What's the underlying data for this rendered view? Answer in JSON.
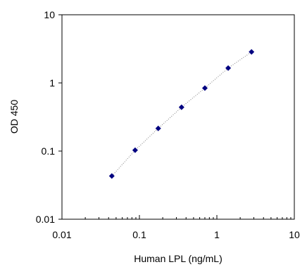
{
  "chart_data": {
    "type": "scatter",
    "x_scale": "log",
    "y_scale": "log",
    "xlim": [
      0.01,
      10
    ],
    "ylim": [
      0.01,
      10
    ],
    "xlabel": "Human LPL (ng/mL)",
    "ylabel": "OD 450",
    "x_tick_labels": [
      "0.01",
      "0.1",
      "1",
      "10"
    ],
    "y_tick_labels": [
      "0.01",
      "0.1",
      "1",
      "10"
    ],
    "grid": false,
    "legend": "none",
    "marker": "diamond",
    "marker_color": "#000080",
    "line_style": "dotted",
    "line_color": "#808080",
    "series": [
      {
        "x": [
          0.044,
          0.088,
          0.175,
          0.35,
          0.7,
          1.4,
          2.8
        ],
        "y": [
          0.043,
          0.103,
          0.215,
          0.44,
          0.84,
          1.65,
          2.85
        ]
      }
    ]
  }
}
